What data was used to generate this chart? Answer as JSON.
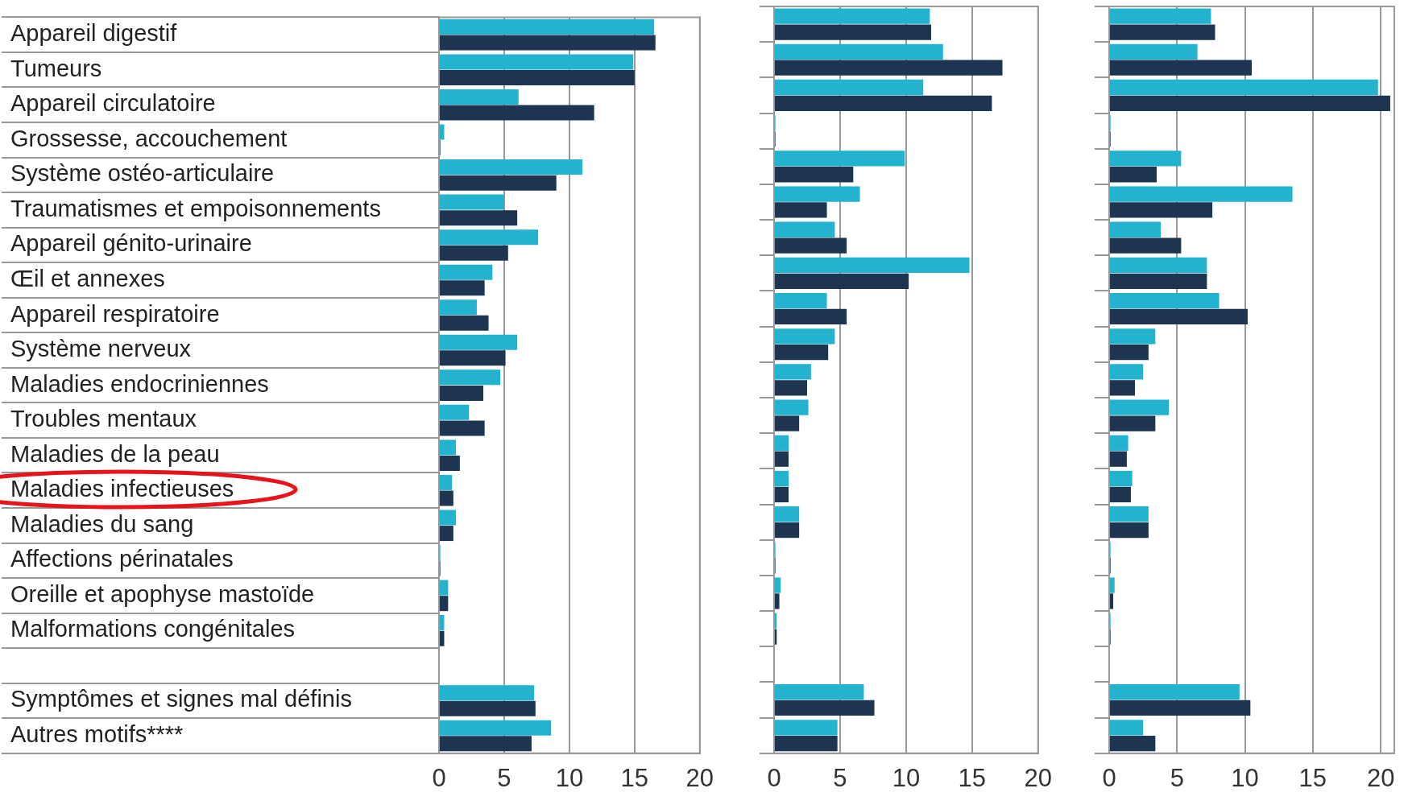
{
  "chart_data": [
    {
      "type": "bar",
      "orientation": "horizontal",
      "categories": [
        "Appareil digestif",
        "Tumeurs",
        "Appareil circulatoire",
        "Grossesse, accouchement",
        "Système ostéo-articulaire",
        "Traumatismes et empoisonnements",
        "Appareil génito-urinaire",
        "Œil et annexes",
        "Appareil respiratoire",
        "Système nerveux",
        "Maladies endocriniennes",
        "Troubles mentaux",
        "Maladies de la peau",
        "Maladies infectieuses",
        "Maladies du sang",
        "Affections périnatales",
        "Oreille et apophyse mastoïde",
        "Malformations congénitales",
        null,
        "Symptômes et signes mal définis",
        "Autres motifs****"
      ],
      "series": [
        {
          "color": "#24b3cf",
          "values": [
            16.5,
            14.9,
            6.1,
            0.4,
            11.0,
            5.0,
            7.6,
            4.1,
            2.9,
            6.0,
            4.7,
            2.3,
            1.3,
            1.0,
            1.3,
            0.1,
            0.7,
            0.4,
            null,
            7.3,
            8.6
          ]
        },
        {
          "color": "#1d3550",
          "values": [
            16.6,
            15.0,
            11.9,
            0.1,
            9.0,
            6.0,
            5.3,
            3.5,
            3.8,
            5.1,
            3.4,
            3.5,
            1.6,
            1.1,
            1.1,
            0.1,
            0.7,
            0.4,
            null,
            7.4,
            7.1
          ]
        }
      ],
      "xlim": [
        0,
        20
      ],
      "xticks": [
        0,
        5,
        10,
        15,
        20
      ],
      "grid": "x"
    },
    {
      "type": "bar",
      "orientation": "horizontal",
      "categories": [
        null,
        null,
        null,
        null,
        null,
        null,
        null,
        null,
        null,
        null,
        null,
        null,
        null,
        null,
        null,
        null,
        null,
        null,
        null,
        null,
        null
      ],
      "series": [
        {
          "color": "#24b3cf",
          "values": [
            11.8,
            12.8,
            11.3,
            0.1,
            9.9,
            6.5,
            4.6,
            14.8,
            4.0,
            4.6,
            2.8,
            2.6,
            1.1,
            1.1,
            1.9,
            0.1,
            0.5,
            0.2,
            null,
            6.8,
            4.8
          ]
        },
        {
          "color": "#1d3550",
          "values": [
            11.9,
            17.3,
            16.5,
            0.1,
            6.0,
            4.0,
            5.5,
            10.2,
            5.5,
            4.1,
            2.5,
            1.9,
            1.1,
            1.1,
            1.9,
            0.1,
            0.4,
            0.2,
            null,
            7.6,
            4.8
          ]
        }
      ],
      "xlim": [
        0,
        20
      ],
      "xticks": [
        0,
        5,
        10,
        15,
        20
      ],
      "grid": "x",
      "tick_labels": "x"
    },
    {
      "type": "bar",
      "orientation": "horizontal",
      "categories": [
        null,
        null,
        null,
        null,
        null,
        null,
        null,
        null,
        null,
        null,
        null,
        null,
        null,
        null,
        null,
        null,
        null,
        null,
        null,
        null,
        null
      ],
      "series": [
        {
          "color": "#24b3cf",
          "values": [
            7.5,
            6.5,
            19.8,
            0.1,
            5.3,
            13.5,
            3.8,
            7.2,
            8.1,
            3.4,
            2.5,
            4.4,
            1.4,
            1.7,
            2.9,
            0.1,
            0.4,
            0.1,
            null,
            9.6,
            2.5
          ]
        },
        {
          "color": "#1d3550",
          "values": [
            7.8,
            10.5,
            20.7,
            0.1,
            3.5,
            7.6,
            5.3,
            7.2,
            10.2,
            2.9,
            1.9,
            3.4,
            1.3,
            1.6,
            2.9,
            0.1,
            0.3,
            0.1,
            null,
            10.4,
            3.4
          ]
        }
      ],
      "xlim": [
        0,
        21
      ],
      "xticks": [
        0,
        5,
        10,
        15,
        20
      ],
      "grid": "x",
      "tick_labels": "x"
    }
  ]
}
